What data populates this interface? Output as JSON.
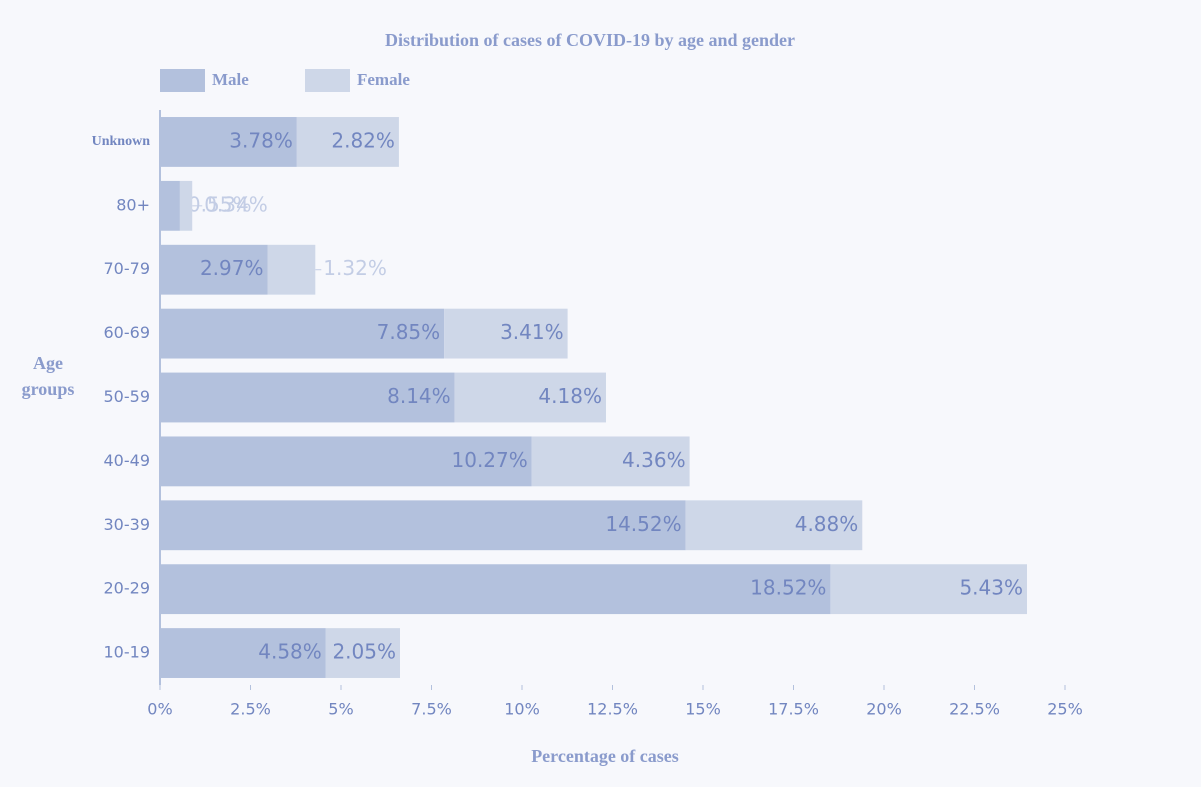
{
  "chart_data": {
    "type": "stacked-bar-horizontal",
    "title": "Distribution of cases of COVID-19 by age and gender",
    "x_label": "Percentage of cases",
    "y_label": "Age groups",
    "categories": [
      "Unknown",
      "80+",
      "70-79",
      "60-69",
      "50-59",
      "40-49",
      "30-39",
      "20-29",
      "10-19"
    ],
    "series": [
      {
        "name": "Male",
        "color": "#b3c1dd",
        "values": [
          3.78,
          0.55,
          2.97,
          7.85,
          8.14,
          10.27,
          14.52,
          18.52,
          4.58
        ],
        "value_labels": [
          "3.78%",
          "0.55%",
          "2.97%",
          "7.85%",
          "8.14%",
          "10.27%",
          "14.52%",
          "18.52%",
          "4.58%"
        ]
      },
      {
        "name": "Female",
        "color": "#ced7e8",
        "values": [
          2.82,
          0.34,
          1.32,
          3.41,
          4.18,
          4.36,
          4.88,
          5.43,
          2.05
        ],
        "value_labels": [
          "2.82%",
          "0.34%",
          "1.32%",
          "3.41%",
          "4.18%",
          "4.36%",
          "4.88%",
          "5.43%",
          "2.05%"
        ]
      }
    ],
    "xlim": [
      0,
      25
    ],
    "xticks": [
      {
        "value": 0,
        "label": "0%"
      },
      {
        "value": 2.5,
        "label": "2.5%"
      },
      {
        "value": 5,
        "label": "5%"
      },
      {
        "value": 7.5,
        "label": "7.5%"
      },
      {
        "value": 10,
        "label": "10%"
      },
      {
        "value": 12.5,
        "label": "12.5%"
      },
      {
        "value": 15,
        "label": "15%"
      },
      {
        "value": 17.5,
        "label": "17.5%"
      },
      {
        "value": 20,
        "label": "20%"
      },
      {
        "value": 22.5,
        "label": "22.5%"
      },
      {
        "value": 25,
        "label": "25%"
      }
    ],
    "legend": "top-left"
  }
}
